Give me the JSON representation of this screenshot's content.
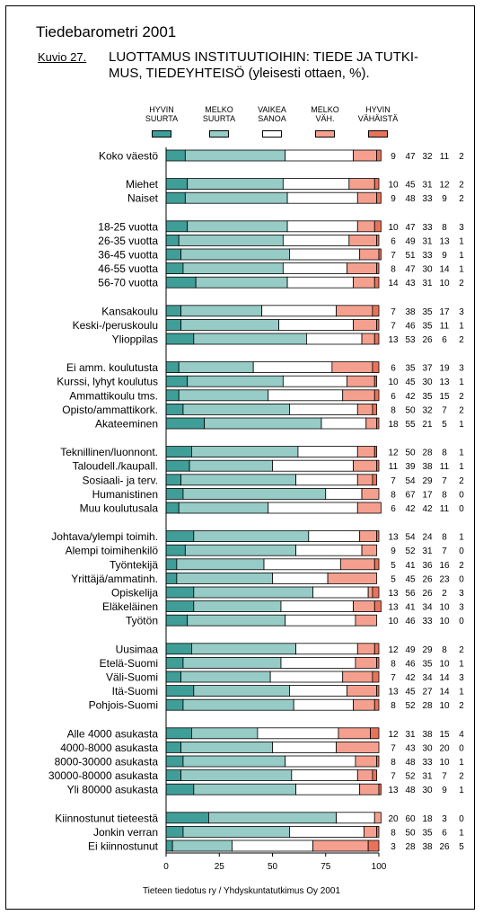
{
  "header": {
    "title": "Tiedebarometri 2001",
    "figure_label": "Kuvio 27.",
    "figure_title_line1": "LUOTTAMUS INSTITUUTIOIHIN: TIEDE JA TUTKI-",
    "figure_title_line2": "MUS, TIEDEYHTEISÖ (yleisesti ottaen, %)."
  },
  "source": "Tieteen tiedotus ry / Yhdyskuntatutkimus Oy 2001",
  "chart_data": {
    "type": "bar",
    "orientation": "horizontal",
    "stacked": true,
    "xlim": [
      0,
      100
    ],
    "xticks": [
      "0",
      "25",
      "50",
      "75",
      "100"
    ],
    "legend_position": "top",
    "series": [
      {
        "name": "HYVIN\nSUURTA",
        "color": "#3f9e98"
      },
      {
        "name": "MELKO\nSUURTA",
        "color": "#96cbc6"
      },
      {
        "name": "VAIKEA\nSANOA",
        "color": "#ffffff"
      },
      {
        "name": "MELKO\nVÄH.",
        "color": "#f5a08f"
      },
      {
        "name": "HYVIN\nVÄHÄISTÄ",
        "color": "#e9735a"
      }
    ],
    "groups": [
      {
        "rows": [
          {
            "label": "Koko väestö",
            "values": [
              9,
              47,
              32,
              11,
              2
            ]
          }
        ]
      },
      {
        "rows": [
          {
            "label": "Miehet",
            "values": [
              10,
              45,
              31,
              12,
              2
            ]
          },
          {
            "label": "Naiset",
            "values": [
              9,
              48,
              33,
              9,
              2
            ]
          }
        ]
      },
      {
        "rows": [
          {
            "label": "18-25 vuotta",
            "values": [
              10,
              47,
              33,
              8,
              3
            ]
          },
          {
            "label": "26-35 vuotta",
            "values": [
              6,
              49,
              31,
              13,
              1
            ]
          },
          {
            "label": "36-45 vuotta",
            "values": [
              7,
              51,
              33,
              9,
              1
            ]
          },
          {
            "label": "46-55 vuotta",
            "values": [
              8,
              47,
              30,
              14,
              1
            ]
          },
          {
            "label": "56-70 vuotta",
            "values": [
              14,
              43,
              31,
              10,
              2
            ]
          }
        ]
      },
      {
        "rows": [
          {
            "label": "Kansakoulu",
            "values": [
              7,
              38,
              35,
              17,
              3
            ]
          },
          {
            "label": "Keski-/peruskoulu",
            "values": [
              7,
              46,
              35,
              11,
              1
            ]
          },
          {
            "label": "Ylioppilas",
            "values": [
              13,
              53,
              26,
              6,
              2
            ]
          }
        ]
      },
      {
        "rows": [
          {
            "label": "Ei amm. koulutusta",
            "values": [
              6,
              35,
              37,
              19,
              3
            ]
          },
          {
            "label": "Kurssi, lyhyt koulutus",
            "values": [
              10,
              45,
              30,
              13,
              1
            ]
          },
          {
            "label": "Ammattikoulu tms.",
            "values": [
              6,
              42,
              35,
              15,
              2
            ]
          },
          {
            "label": "Opisto/ammattikork.",
            "values": [
              8,
              50,
              32,
              7,
              2
            ]
          },
          {
            "label": "Akateeminen",
            "values": [
              18,
              55,
              21,
              5,
              1
            ]
          }
        ]
      },
      {
        "rows": [
          {
            "label": "Teknillinen/luonnont.",
            "values": [
              12,
              50,
              28,
              8,
              1
            ]
          },
          {
            "label": "Taloudell./kaupall.",
            "values": [
              11,
              39,
              38,
              11,
              1
            ]
          },
          {
            "label": "Sosiaali- ja terv.",
            "values": [
              7,
              54,
              29,
              7,
              2
            ]
          },
          {
            "label": "Humanistinen",
            "values": [
              8,
              67,
              17,
              8,
              0
            ]
          },
          {
            "label": "Muu koulutusala",
            "values": [
              6,
              42,
              42,
              11,
              0
            ]
          }
        ]
      },
      {
        "rows": [
          {
            "label": "Johtava/ylempi toimih.",
            "values": [
              13,
              54,
              24,
              8,
              1
            ]
          },
          {
            "label": "Alempi toimihenkilö",
            "values": [
              9,
              52,
              31,
              7,
              0
            ]
          },
          {
            "label": "Työntekijä",
            "values": [
              5,
              41,
              36,
              16,
              2
            ]
          },
          {
            "label": "Yrittäjä/ammatinh.",
            "values": [
              5,
              45,
              26,
              23,
              0
            ]
          },
          {
            "label": "Opiskelija",
            "values": [
              13,
              56,
              26,
              2,
              3
            ]
          },
          {
            "label": "Eläkeläinen",
            "values": [
              13,
              41,
              34,
              10,
              3
            ]
          },
          {
            "label": "Työtön",
            "values": [
              10,
              46,
              33,
              10,
              0
            ]
          }
        ]
      },
      {
        "rows": [
          {
            "label": "Uusimaa",
            "values": [
              12,
              49,
              29,
              8,
              2
            ]
          },
          {
            "label": "Etelä-Suomi",
            "values": [
              8,
              46,
              35,
              10,
              1
            ]
          },
          {
            "label": "Väli-Suomi",
            "values": [
              7,
              42,
              34,
              14,
              3
            ]
          },
          {
            "label": "Itä-Suomi",
            "values": [
              13,
              45,
              27,
              14,
              1
            ]
          },
          {
            "label": "Pohjois-Suomi",
            "values": [
              8,
              52,
              28,
              10,
              2
            ]
          }
        ]
      },
      {
        "rows": [
          {
            "label": "Alle 4000 asukasta",
            "values": [
              12,
              31,
              38,
              15,
              4
            ]
          },
          {
            "label": "4000-8000 asukasta",
            "values": [
              7,
              43,
              30,
              20,
              0
            ]
          },
          {
            "label": "8000-30000 asukasta",
            "values": [
              8,
              48,
              33,
              10,
              1
            ]
          },
          {
            "label": "30000-80000 asukasta",
            "values": [
              7,
              52,
              31,
              7,
              2
            ]
          },
          {
            "label": "Yli 80000 asukasta",
            "values": [
              13,
              48,
              30,
              9,
              1
            ]
          }
        ]
      },
      {
        "rows": [
          {
            "label": "Kiinnostunut tieteestä",
            "values": [
              20,
              60,
              18,
              3,
              0
            ]
          },
          {
            "label": "Jonkin verran",
            "values": [
              8,
              50,
              35,
              6,
              1
            ]
          },
          {
            "label": "Ei kiinnostunut",
            "values": [
              3,
              28,
              38,
              26,
              5
            ]
          }
        ]
      }
    ]
  }
}
